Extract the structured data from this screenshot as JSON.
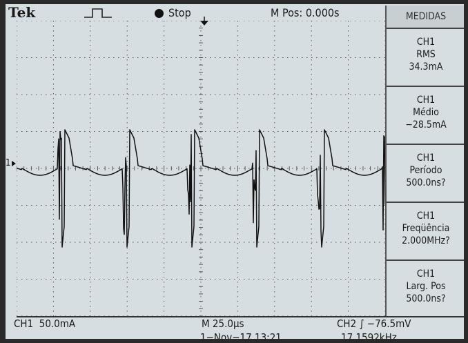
{
  "header": {
    "brand": "Tek",
    "status": "Stop",
    "position": "M Pos: 0.000s"
  },
  "measurements": {
    "title": "MEDIDAS",
    "items": [
      {
        "channel": "CH1",
        "label": "RMS",
        "value": "34.3mA"
      },
      {
        "channel": "CH1",
        "label": "Médio",
        "value": "−28.5mA"
      },
      {
        "channel": "CH1",
        "label": "Período",
        "value": "500.0ns?"
      },
      {
        "channel": "CH1",
        "label": "Freqüência",
        "value": "2.000MHz?"
      },
      {
        "channel": "CH1",
        "label": "Larg. Pos",
        "value": "500.0ns?"
      }
    ]
  },
  "footer": {
    "ch1_scale": "CH1  50.0mA",
    "timebase": "M 25.0µs",
    "trigger": "CH2 ∫ −76.5mV",
    "datetime": "1−Nov−17 13:21",
    "frequency": "17.1592kHz"
  },
  "channel_marker": "1",
  "colors": {
    "screen": "#d7dee2",
    "trace": "#111111",
    "grid": "#555555"
  }
}
